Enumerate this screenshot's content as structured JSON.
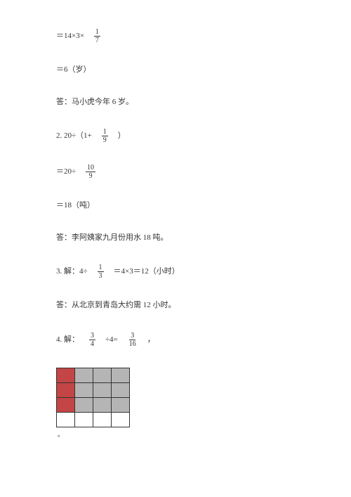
{
  "p1": {
    "line1_a": "＝14×3×",
    "frac1": {
      "n": "1",
      "d": "7"
    },
    "line2": "＝6（岁）",
    "line3": "答：马小虎今年 6 岁。"
  },
  "p2": {
    "line1_a": "2. 20÷（1+",
    "frac1": {
      "n": "1",
      "d": "9"
    },
    "line1_b": "）",
    "line2_a": "＝20÷",
    "frac2": {
      "n": "10",
      "d": "9"
    },
    "line3": "＝18（吨）",
    "line4": "答：李阿姨家九月份用水 18 吨。"
  },
  "p3": {
    "line1_a": "3. 解：4÷",
    "frac1": {
      "n": "1",
      "d": "3"
    },
    "line1_b": "＝4×3＝12（小时）",
    "line2": "答：从北京到青岛大约需 12 小时。"
  },
  "p4": {
    "line1_a": "4. 解：",
    "frac1": {
      "n": "3",
      "d": "4"
    },
    "line1_b": "÷4=",
    "frac2": {
      "n": "3",
      "d": "16"
    },
    "line1_c": "，",
    "grid": {
      "rows": 4,
      "cols": 4,
      "cell_border": "#333333",
      "colors": {
        "red": "#c44545",
        "gray": "#b5b5b5",
        "white": "#ffffff"
      },
      "fill": [
        [
          "red",
          "gray",
          "gray",
          "gray"
        ],
        [
          "red",
          "gray",
          "gray",
          "gray"
        ],
        [
          "red",
          "gray",
          "gray",
          "gray"
        ],
        [
          "white",
          "white",
          "white",
          "white"
        ]
      ]
    }
  }
}
